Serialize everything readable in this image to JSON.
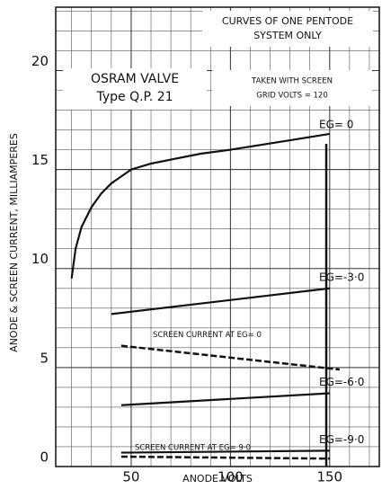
{
  "chart_data": {
    "type": "line",
    "xlabel": "ANODE VOLTS",
    "ylabel": "ANODE & SCREEN CURRENT, MILLIAMPERES",
    "xlim": [
      12,
      175
    ],
    "ylim": [
      0,
      23.2
    ],
    "xticks": [
      50,
      100,
      150
    ],
    "yticks": [
      0,
      5,
      10,
      15,
      20
    ],
    "grid": true,
    "series": [
      {
        "name": "EG= 0",
        "color": "#111",
        "dash": false,
        "x": [
          20,
          22,
          25,
          30,
          35,
          40,
          50,
          60,
          70,
          85,
          100,
          125,
          150
        ],
        "values": [
          9.5,
          11,
          12.1,
          13.1,
          13.8,
          14.3,
          15,
          15.3,
          15.5,
          15.8,
          16,
          16.4,
          16.8
        ]
      },
      {
        "name": "EG=-3·0",
        "color": "#111",
        "dash": false,
        "x": [
          40,
          150
        ],
        "values": [
          7.7,
          9.0
        ]
      },
      {
        "name": "SCREEN CURRENT AT EG= 0",
        "color": "#111",
        "dash": true,
        "x": [
          45,
          155
        ],
        "values": [
          6.1,
          4.9
        ]
      },
      {
        "name": "EG=-6·0",
        "color": "#111",
        "dash": false,
        "x": [
          45,
          150
        ],
        "values": [
          3.1,
          3.7
        ]
      },
      {
        "name": "EG=-9·0",
        "color": "#111",
        "dash": false,
        "x": [
          45,
          150
        ],
        "values": [
          0.7,
          0.8
        ]
      },
      {
        "name": "SCREEN CURRENT AT EG= 9·0",
        "color": "#111",
        "dash": true,
        "x": [
          45,
          150
        ],
        "values": [
          0.5,
          0.4
        ]
      }
    ],
    "annotations": [
      "CURVES OF ONE PENTODE",
      "SYSTEM ONLY",
      "OSRAM VALVE",
      "Type Q.P. 21",
      "TAKEN WITH SCREEN",
      "GRID VOLTS = 120"
    ]
  }
}
